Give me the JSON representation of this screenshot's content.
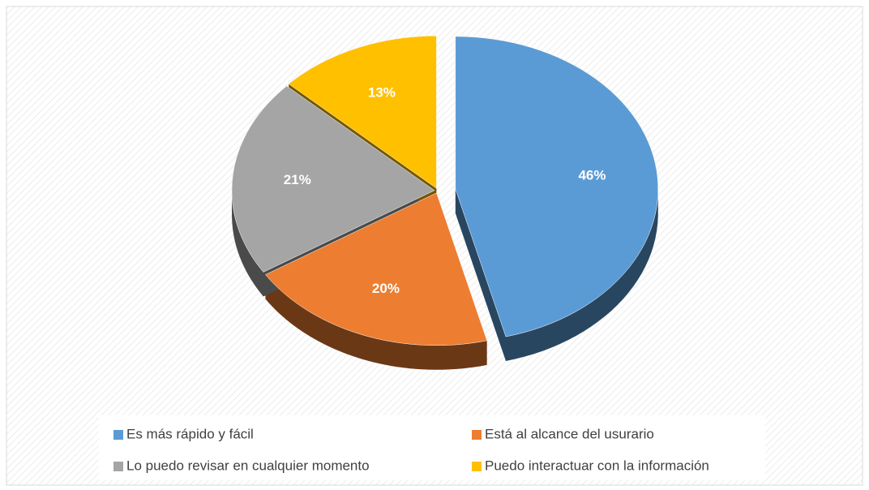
{
  "chart_data": {
    "type": "pie",
    "categories": [
      "Es más rápido y fácil",
      "Está al alcance del usurario",
      "Lo puedo revisar en cualquier momento",
      "Puedo interactuar con la información"
    ],
    "values": [
      46,
      20,
      21,
      13
    ],
    "value_labels": [
      "46%",
      "20%",
      "21%",
      "13%"
    ],
    "colors": [
      "#5b9bd5",
      "#ed7d31",
      "#a5a5a5",
      "#ffc000"
    ],
    "legend": "bottom"
  }
}
